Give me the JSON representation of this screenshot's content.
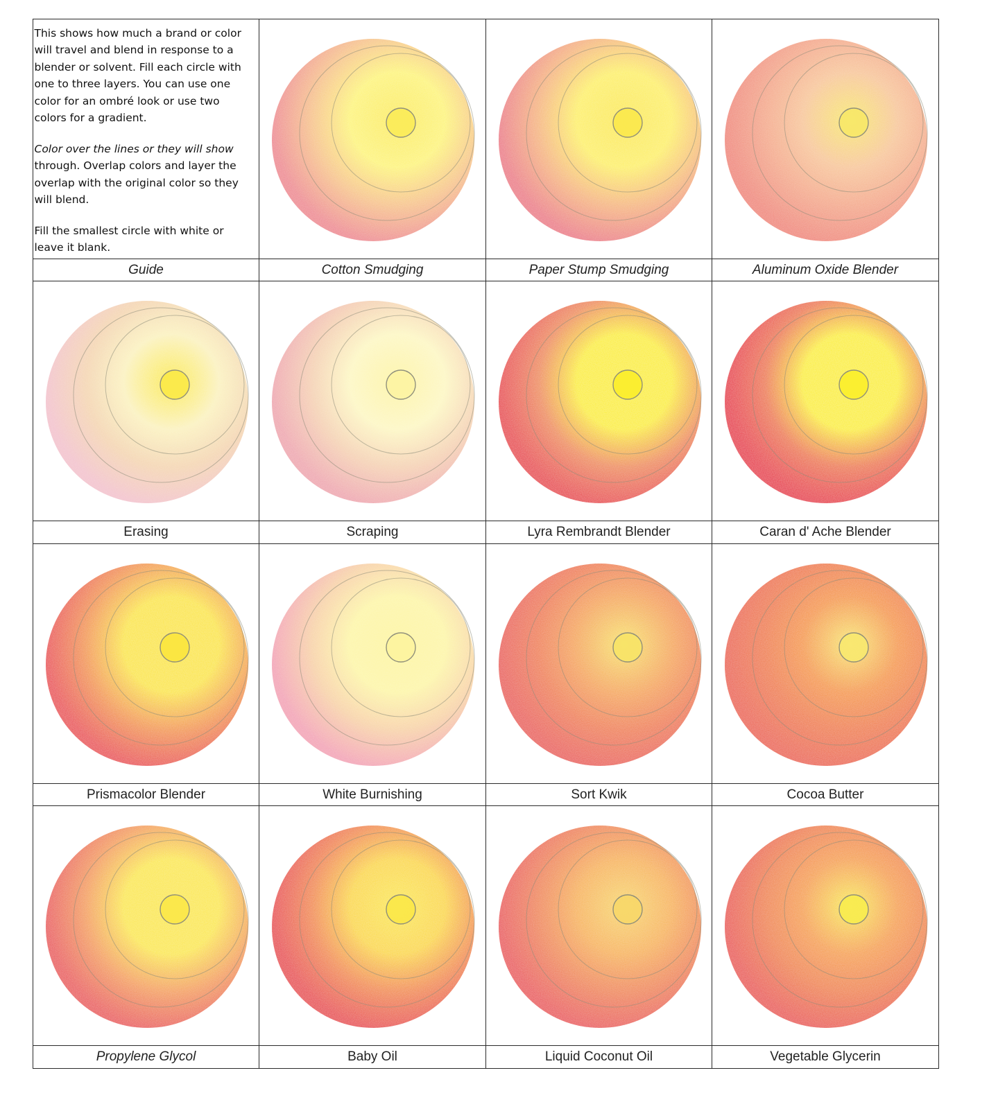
{
  "guide": {
    "paragraph1": "This shows how much a brand or color will travel and blend in response to a blender or solvent. Fill each circle with one to three layers. You can use one color for an ombré look or use two colors for a gradient.",
    "paragraph2_italic": "Color over the lines or they will show",
    "paragraph2_rest": "through. Overlap colors and layer the overlap with the original color so they will blend.",
    "paragraph3": "Fill the smallest circle with white or leave it blank.",
    "label": "Guide"
  },
  "palette": {
    "red": "#e8363f",
    "pink": "#ee8fa0",
    "orange": "#f28a3a",
    "yellow": "#fbf03a",
    "pale_yellow": "#fdf8b8",
    "line": "#8c8c7a"
  },
  "cells": [
    {
      "label": "Cotton Smudging",
      "italic": true,
      "outer": "#ee8a92",
      "inner": "#fdf47a",
      "core": "#fbec5a",
      "mid": "#f7c48a"
    },
    {
      "label": "Paper Stump Smudging",
      "italic": true,
      "outer": "#ec7d88",
      "inner": "#fdf066",
      "core": "#fbe94e",
      "mid": "#f6b87f"
    },
    {
      "label": "Aluminum Oxide Blender",
      "italic": true,
      "outer": "#f0877a",
      "inner": "#f8c79a",
      "core": "#f8e86a",
      "mid": "#f4a98a"
    },
    {
      "label": "Erasing",
      "italic": false,
      "outer": "#f3c3cd",
      "inner": "#fbf2c0",
      "core": "#fbea4a",
      "mid": "#f4d6b2"
    },
    {
      "label": "Scraping",
      "italic": false,
      "outer": "#efa7b0",
      "inner": "#fdf7c4",
      "core": "#fdf4a4",
      "mid": "#f5d2b4"
    },
    {
      "label": "Lyra Rembrandt Blender",
      "italic": false,
      "outer": "#e8454c",
      "inner": "#fbee2e",
      "core": "#fbee2e",
      "mid": "#ef8e5a"
    },
    {
      "label": "Caran d' Ache Blender",
      "italic": false,
      "outer": "#e73146",
      "inner": "#fbef2e",
      "core": "#fbef2e",
      "mid": "#ee7b4e"
    },
    {
      "label": "Prismacolor Blender",
      "italic": false,
      "outer": "#ea4f52",
      "inner": "#fbe640",
      "core": "#fbe640",
      "mid": "#f39a4a"
    },
    {
      "label": "White Burnishing",
      "italic": false,
      "outer": "#f3a3b6",
      "inner": "#fdf6a8",
      "core": "#fdf4a0",
      "mid": "#f8d3a8"
    },
    {
      "label": "Sort Kwik",
      "italic": false,
      "outer": "#ea5e58",
      "inner": "#f5a955",
      "core": "#f8e468",
      "mid": "#f08050"
    },
    {
      "label": "Cocoa Butter",
      "italic": false,
      "outer": "#ec6450",
      "inner": "#f59a42",
      "core": "#f9e870",
      "mid": "#f07e46"
    },
    {
      "label": "Propylene Glycol",
      "italic": true,
      "outer": "#ea5a5a",
      "inner": "#fbe84a",
      "core": "#fbe84a",
      "mid": "#f4a058"
    },
    {
      "label": "Baby Oil",
      "italic": false,
      "outer": "#e8484e",
      "inner": "#fbd83e",
      "core": "#fbe84a",
      "mid": "#f28c48"
    },
    {
      "label": "Liquid Coconut Oil",
      "italic": false,
      "outer": "#ea585a",
      "inner": "#f7b454",
      "core": "#f8d86a",
      "mid": "#f08852"
    },
    {
      "label": "Vegetable Glycerin",
      "italic": false,
      "outer": "#ea5852",
      "inner": "#f6a24a",
      "core": "#f9ec50",
      "mid": "#f08448"
    }
  ]
}
